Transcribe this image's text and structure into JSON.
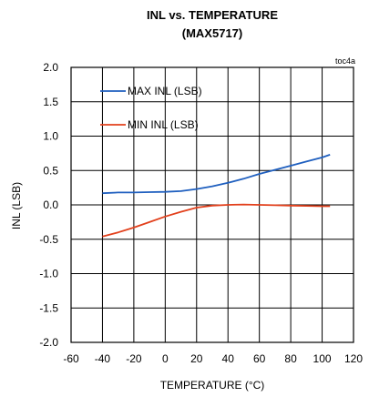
{
  "chart_data": {
    "type": "line",
    "title": "INL vs. TEMPERATURE",
    "subtitle": "(MAX5717)",
    "tag": "toc4a",
    "xlabel": "TEMPERATURE (°C)",
    "ylabel": "INL (LSB)",
    "xlim": [
      -60,
      120
    ],
    "ylim": [
      -2.0,
      2.0
    ],
    "x_ticks": [
      "-60",
      "-40",
      "-20",
      "0",
      "20",
      "40",
      "60",
      "80",
      "100",
      "120"
    ],
    "y_ticks": [
      "2.0",
      "1.5",
      "1.0",
      "0.5",
      "0.0",
      "-0.5",
      "-1.0",
      "-1.5",
      "-2.0"
    ],
    "grid": true,
    "legend_position": "top-left",
    "series": [
      {
        "name": "MAX INL (LSB)",
        "color": "#1f5fbf",
        "x": [
          -40,
          -30,
          -20,
          -10,
          0,
          10,
          20,
          30,
          40,
          50,
          60,
          70,
          80,
          90,
          100,
          105
        ],
        "y": [
          0.17,
          0.18,
          0.18,
          0.185,
          0.19,
          0.2,
          0.23,
          0.27,
          0.32,
          0.38,
          0.45,
          0.51,
          0.57,
          0.63,
          0.69,
          0.73
        ]
      },
      {
        "name": "MIN INL (LSB)",
        "color": "#e2401c",
        "x": [
          -40,
          -30,
          -20,
          -10,
          0,
          10,
          20,
          30,
          40,
          50,
          60,
          70,
          80,
          90,
          100,
          105
        ],
        "y": [
          -0.46,
          -0.4,
          -0.33,
          -0.25,
          -0.17,
          -0.1,
          -0.04,
          -0.01,
          0.0,
          0.005,
          0.0,
          -0.005,
          -0.01,
          -0.015,
          -0.02,
          -0.02
        ]
      }
    ]
  }
}
